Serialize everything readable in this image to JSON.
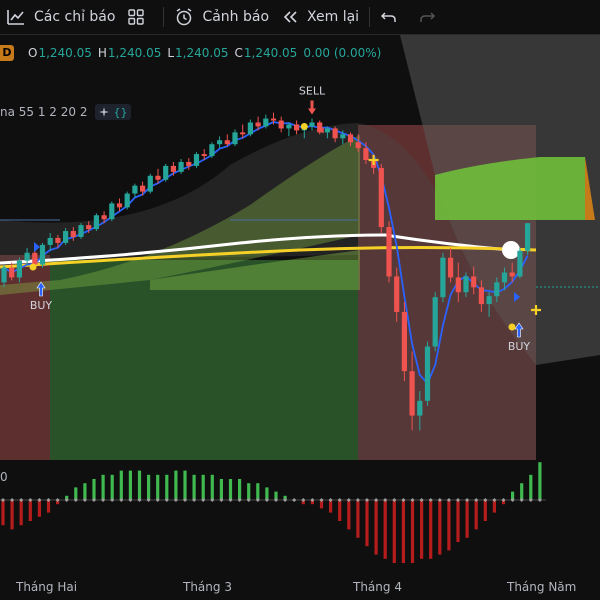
{
  "toolbar": {
    "indicators_label": "Các chỉ báo",
    "alerts_label": "Cảnh báo",
    "replay_label": "Xem lại"
  },
  "legend": {
    "badge": "D",
    "o_key": "O",
    "o_val": "1,240.05",
    "h_key": "H",
    "h_val": "1,240.05",
    "l_key": "L",
    "l_val": "1,240.05",
    "c_key": "C",
    "c_val": "1,240.05",
    "change": "0.00 (0.00%)"
  },
  "indicator": {
    "text": "na 55 1 2 20 2"
  },
  "oscillator": {
    "label": "0"
  },
  "x_axis": {
    "labels": [
      "Tháng Hai",
      "Tháng 3",
      "Tháng 4",
      "Tháng Năm"
    ]
  },
  "annotations": {
    "sell": "SELL",
    "buy1": "BUY",
    "buy2": "BUY"
  },
  "colors": {
    "up": "#26a69a",
    "down": "#ef5350",
    "blue_line": "#2962ff",
    "white_line": "#ffffff",
    "yellow_line": "#f5d027",
    "cloud_green": "#6fbf3a",
    "hist_up": "#3fb950",
    "hist_down": "#b71c1c"
  },
  "chart_data": {
    "type": "candlestick",
    "x_labels": [
      "Tháng Hai",
      "Tháng 3",
      "Tháng 4",
      "Tháng Năm"
    ],
    "last_close": 1240.05,
    "candles": [
      [
        1180,
        1198,
        1175,
        1195
      ],
      [
        1195,
        1200,
        1182,
        1185
      ],
      [
        1185,
        1205,
        1180,
        1202
      ],
      [
        1202,
        1215,
        1198,
        1210
      ],
      [
        1210,
        1212,
        1195,
        1198
      ],
      [
        1198,
        1220,
        1195,
        1218
      ],
      [
        1218,
        1230,
        1212,
        1225
      ],
      [
        1225,
        1228,
        1215,
        1220
      ],
      [
        1220,
        1235,
        1218,
        1232
      ],
      [
        1232,
        1236,
        1222,
        1226
      ],
      [
        1226,
        1240,
        1224,
        1238
      ],
      [
        1238,
        1242,
        1230,
        1234
      ],
      [
        1234,
        1250,
        1232,
        1248
      ],
      [
        1248,
        1252,
        1240,
        1244
      ],
      [
        1244,
        1262,
        1242,
        1260
      ],
      [
        1260,
        1265,
        1252,
        1256
      ],
      [
        1256,
        1272,
        1254,
        1270
      ],
      [
        1270,
        1280,
        1266,
        1278
      ],
      [
        1278,
        1282,
        1268,
        1272
      ],
      [
        1272,
        1290,
        1270,
        1288
      ],
      [
        1288,
        1295,
        1280,
        1284
      ],
      [
        1284,
        1300,
        1282,
        1298
      ],
      [
        1298,
        1302,
        1288,
        1292
      ],
      [
        1292,
        1305,
        1290,
        1302
      ],
      [
        1302,
        1306,
        1294,
        1298
      ],
      [
        1298,
        1312,
        1296,
        1310
      ],
      [
        1310,
        1315,
        1304,
        1308
      ],
      [
        1308,
        1322,
        1306,
        1320
      ],
      [
        1320,
        1328,
        1316,
        1324
      ],
      [
        1324,
        1330,
        1318,
        1320
      ],
      [
        1320,
        1335,
        1318,
        1332
      ],
      [
        1332,
        1340,
        1326,
        1330
      ],
      [
        1330,
        1345,
        1328,
        1342
      ],
      [
        1342,
        1348,
        1334,
        1338
      ],
      [
        1338,
        1350,
        1336,
        1346
      ],
      [
        1346,
        1352,
        1340,
        1344
      ],
      [
        1344,
        1348,
        1332,
        1336
      ],
      [
        1336,
        1342,
        1328,
        1340
      ],
      [
        1340,
        1344,
        1330,
        1334
      ],
      [
        1334,
        1340,
        1326,
        1338
      ],
      [
        1338,
        1346,
        1334,
        1342
      ],
      [
        1342,
        1344,
        1330,
        1332
      ],
      [
        1332,
        1338,
        1326,
        1336
      ],
      [
        1336,
        1338,
        1322,
        1326
      ],
      [
        1326,
        1334,
        1320,
        1330
      ],
      [
        1330,
        1332,
        1318,
        1322
      ],
      [
        1322,
        1330,
        1312,
        1316
      ],
      [
        1316,
        1322,
        1300,
        1304
      ],
      [
        1304,
        1310,
        1290,
        1296
      ],
      [
        1296,
        1300,
        1230,
        1236
      ],
      [
        1236,
        1242,
        1180,
        1186
      ],
      [
        1186,
        1195,
        1140,
        1150
      ],
      [
        1150,
        1160,
        1080,
        1090
      ],
      [
        1090,
        1110,
        1030,
        1045
      ],
      [
        1045,
        1070,
        1030,
        1060
      ],
      [
        1060,
        1120,
        1055,
        1115
      ],
      [
        1115,
        1170,
        1110,
        1165
      ],
      [
        1165,
        1210,
        1160,
        1205
      ],
      [
        1205,
        1215,
        1180,
        1185
      ],
      [
        1185,
        1200,
        1160,
        1170
      ],
      [
        1170,
        1190,
        1165,
        1186
      ],
      [
        1186,
        1196,
        1168,
        1175
      ],
      [
        1175,
        1182,
        1150,
        1158
      ],
      [
        1158,
        1170,
        1145,
        1166
      ],
      [
        1166,
        1185,
        1160,
        1180
      ],
      [
        1180,
        1195,
        1172,
        1190
      ],
      [
        1190,
        1200,
        1180,
        1186
      ],
      [
        1186,
        1215,
        1184,
        1212
      ],
      [
        1212,
        1240,
        1208,
        1240
      ]
    ],
    "histogram": [
      -6,
      -7,
      -6,
      -5,
      -4,
      -3,
      -1,
      1,
      3,
      4,
      5,
      6,
      6,
      7,
      7,
      7,
      6,
      6,
      6,
      7,
      7,
      6,
      6,
      6,
      5,
      5,
      5,
      4,
      4,
      3,
      2,
      1,
      0,
      -1,
      -1,
      -2,
      -3,
      -5,
      -7,
      -9,
      -11,
      -13,
      -14,
      -15,
      -15,
      -15,
      -14,
      -14,
      -13,
      -12,
      -10,
      -9,
      -7,
      -5,
      -3,
      -1,
      2,
      4,
      6,
      9
    ]
  }
}
